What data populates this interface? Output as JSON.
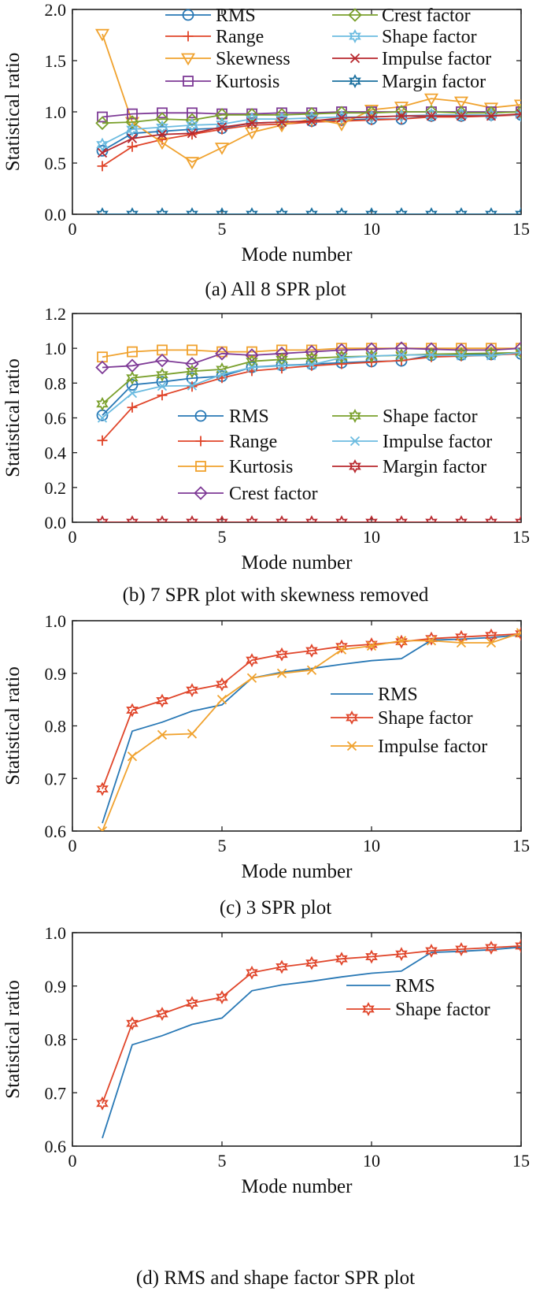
{
  "chart_data": [
    {
      "type": "line",
      "caption": "(a) All 8 SPR plot",
      "xlabel": "Mode number",
      "ylabel": "Statistical ratio",
      "xlim": [
        0,
        15
      ],
      "ylim": [
        0,
        2
      ],
      "xticks": [
        "0",
        "5",
        "10",
        "15"
      ],
      "yticks": [
        "0.0",
        "0.5",
        "1.0",
        "1.5",
        "2.0"
      ],
      "legend_position": "top",
      "legend_columns": 2,
      "x": [
        1,
        2,
        3,
        4,
        5,
        6,
        7,
        8,
        9,
        10,
        11,
        12,
        13,
        14,
        15
      ],
      "series": [
        {
          "name": "RMS",
          "color": "#2878b5",
          "marker": "circle",
          "values": [
            0.62,
            0.79,
            0.81,
            0.83,
            0.84,
            0.89,
            0.9,
            0.91,
            0.92,
            0.93,
            0.93,
            0.96,
            0.96,
            0.97,
            0.97
          ]
        },
        {
          "name": "Range",
          "color": "#e0452a",
          "marker": "plus",
          "values": [
            0.47,
            0.66,
            0.73,
            0.78,
            0.83,
            0.87,
            0.88,
            0.9,
            0.91,
            0.92,
            0.93,
            0.95,
            0.95,
            0.96,
            0.97
          ]
        },
        {
          "name": "Skewness",
          "color": "#f0a22e",
          "marker": "triangle-down",
          "values": [
            1.76,
            0.9,
            0.7,
            0.51,
            0.65,
            0.8,
            0.87,
            0.93,
            0.88,
            1.02,
            1.05,
            1.13,
            1.1,
            1.04,
            1.07
          ]
        },
        {
          "name": "Kurtosis",
          "color": "#7e3a96",
          "marker": "square",
          "values": [
            0.95,
            0.98,
            0.99,
            0.99,
            0.98,
            0.98,
            0.99,
            0.99,
            1.0,
            1.0,
            1.0,
            1.0,
            1.0,
            1.0,
            1.0
          ]
        },
        {
          "name": "Crest factor",
          "color": "#7aa02c",
          "marker": "diamond",
          "values": [
            0.89,
            0.9,
            0.93,
            0.92,
            0.97,
            0.97,
            0.97,
            0.98,
            0.99,
            0.99,
            1.0,
            1.0,
            0.99,
            0.99,
            1.0
          ]
        },
        {
          "name": "Shape factor",
          "color": "#6bbbe0",
          "marker": "star",
          "values": [
            0.68,
            0.83,
            0.85,
            0.87,
            0.88,
            0.93,
            0.93,
            0.94,
            0.95,
            0.95,
            0.96,
            0.97,
            0.97,
            0.97,
            0.97
          ]
        },
        {
          "name": "Impulse factor",
          "color": "#b8282e",
          "marker": "x",
          "values": [
            0.6,
            0.74,
            0.78,
            0.79,
            0.85,
            0.89,
            0.9,
            0.91,
            0.94,
            0.95,
            0.96,
            0.96,
            0.96,
            0.96,
            0.98
          ]
        },
        {
          "name": "Margin factor",
          "color": "#1a6f9e",
          "marker": "star",
          "values": [
            0,
            0,
            0,
            0,
            0,
            0,
            0,
            0,
            0,
            0,
            0,
            0,
            0,
            0,
            0
          ]
        }
      ]
    },
    {
      "type": "line",
      "caption": "(b) 7 SPR plot with skewness removed",
      "xlabel": "Mode number",
      "ylabel": "Statistical ratio",
      "xlim": [
        0,
        15
      ],
      "ylim": [
        0,
        1.2
      ],
      "xticks": [
        "0",
        "5",
        "10",
        "15"
      ],
      "yticks": [
        "0.0",
        "0.2",
        "0.4",
        "0.6",
        "0.8",
        "1.0",
        "1.2"
      ],
      "legend_position": "lower-center",
      "legend_columns": 2,
      "x": [
        1,
        2,
        3,
        4,
        5,
        6,
        7,
        8,
        9,
        10,
        11,
        12,
        13,
        14,
        15
      ],
      "series": [
        {
          "name": "RMS",
          "color": "#2878b5",
          "marker": "circle",
          "values": [
            0.615,
            0.79,
            0.807,
            0.828,
            0.84,
            0.891,
            0.902,
            0.909,
            0.917,
            0.924,
            0.928,
            0.96,
            0.962,
            0.965,
            0.968
          ]
        },
        {
          "name": "Range",
          "color": "#e0452a",
          "marker": "plus",
          "values": [
            0.47,
            0.66,
            0.73,
            0.78,
            0.83,
            0.87,
            0.885,
            0.9,
            0.91,
            0.92,
            0.93,
            0.95,
            0.955,
            0.96,
            0.97
          ]
        },
        {
          "name": "Kurtosis",
          "color": "#f0a22e",
          "marker": "square",
          "values": [
            0.95,
            0.98,
            0.99,
            0.99,
            0.98,
            0.98,
            0.99,
            0.99,
            1.0,
            1.0,
            1.0,
            1.0,
            1.0,
            1.0,
            1.0
          ]
        },
        {
          "name": "Crest factor",
          "color": "#7e3a96",
          "marker": "diamond",
          "values": [
            0.89,
            0.9,
            0.93,
            0.91,
            0.97,
            0.96,
            0.97,
            0.98,
            0.99,
            0.995,
            1.0,
            0.995,
            0.99,
            0.99,
            1.0
          ]
        },
        {
          "name": "Shape factor",
          "color": "#7aa02c",
          "marker": "star",
          "values": [
            0.68,
            0.83,
            0.848,
            0.868,
            0.879,
            0.925,
            0.936,
            0.943,
            0.951,
            0.955,
            0.96,
            0.966,
            0.969,
            0.972,
            0.975
          ]
        },
        {
          "name": "Impulse factor",
          "color": "#6bbbe0",
          "marker": "x",
          "values": [
            0.6,
            0.742,
            0.783,
            0.785,
            0.85,
            0.89,
            0.9,
            0.906,
            0.945,
            0.955,
            0.962,
            0.962,
            0.958,
            0.958,
            0.977
          ]
        },
        {
          "name": "Margin factor",
          "color": "#b8282e",
          "marker": "star",
          "values": [
            0,
            0,
            0,
            0,
            0,
            0,
            0,
            0,
            0,
            0,
            0,
            0,
            0,
            0,
            0
          ]
        }
      ]
    },
    {
      "type": "line",
      "caption": "(c) 3 SPR plot",
      "xlabel": "Mode number",
      "ylabel": "Statistical ratio",
      "xlim": [
        0,
        15
      ],
      "ylim": [
        0.6,
        1.0
      ],
      "xticks": [
        "0",
        "5",
        "10",
        "15"
      ],
      "yticks": [
        "0.6",
        "0.7",
        "0.8",
        "0.9",
        "1.0"
      ],
      "legend_position": "center-right",
      "legend_columns": 1,
      "x": [
        1,
        2,
        3,
        4,
        5,
        6,
        7,
        8,
        9,
        10,
        11,
        12,
        13,
        14,
        15
      ],
      "series": [
        {
          "name": "RMS",
          "color": "#2878b5",
          "marker": "none",
          "values": [
            0.615,
            0.79,
            0.807,
            0.828,
            0.84,
            0.891,
            0.902,
            0.909,
            0.917,
            0.924,
            0.928,
            0.963,
            0.965,
            0.968,
            0.973
          ]
        },
        {
          "name": "Shape factor",
          "color": "#e0452a",
          "marker": "star",
          "values": [
            0.68,
            0.83,
            0.848,
            0.868,
            0.879,
            0.925,
            0.936,
            0.943,
            0.951,
            0.955,
            0.96,
            0.966,
            0.969,
            0.972,
            0.975
          ]
        },
        {
          "name": "Impulse factor",
          "color": "#f0a22e",
          "marker": "x",
          "values": [
            0.6,
            0.742,
            0.783,
            0.785,
            0.85,
            0.891,
            0.9,
            0.906,
            0.945,
            0.952,
            0.962,
            0.962,
            0.958,
            0.958,
            0.977
          ]
        }
      ]
    },
    {
      "type": "line",
      "caption": "(d) RMS and shape factor SPR plot",
      "xlabel": "Mode number",
      "ylabel": "Statistical ratio",
      "xlim": [
        0,
        15
      ],
      "ylim": [
        0.6,
        1.0
      ],
      "xticks": [
        "0",
        "5",
        "10",
        "15"
      ],
      "yticks": [
        "0.6",
        "0.7",
        "0.8",
        "0.9",
        "1.0"
      ],
      "legend_position": "center-right",
      "legend_columns": 1,
      "x": [
        1,
        2,
        3,
        4,
        5,
        6,
        7,
        8,
        9,
        10,
        11,
        12,
        13,
        14,
        15
      ],
      "series": [
        {
          "name": "RMS",
          "color": "#2878b5",
          "marker": "none",
          "values": [
            0.615,
            0.79,
            0.807,
            0.828,
            0.84,
            0.891,
            0.902,
            0.909,
            0.917,
            0.924,
            0.928,
            0.963,
            0.965,
            0.968,
            0.973
          ]
        },
        {
          "name": "Shape factor",
          "color": "#e0452a",
          "marker": "star",
          "values": [
            0.68,
            0.83,
            0.848,
            0.868,
            0.879,
            0.925,
            0.936,
            0.943,
            0.951,
            0.955,
            0.96,
            0.966,
            0.969,
            0.972,
            0.975
          ]
        }
      ]
    }
  ]
}
